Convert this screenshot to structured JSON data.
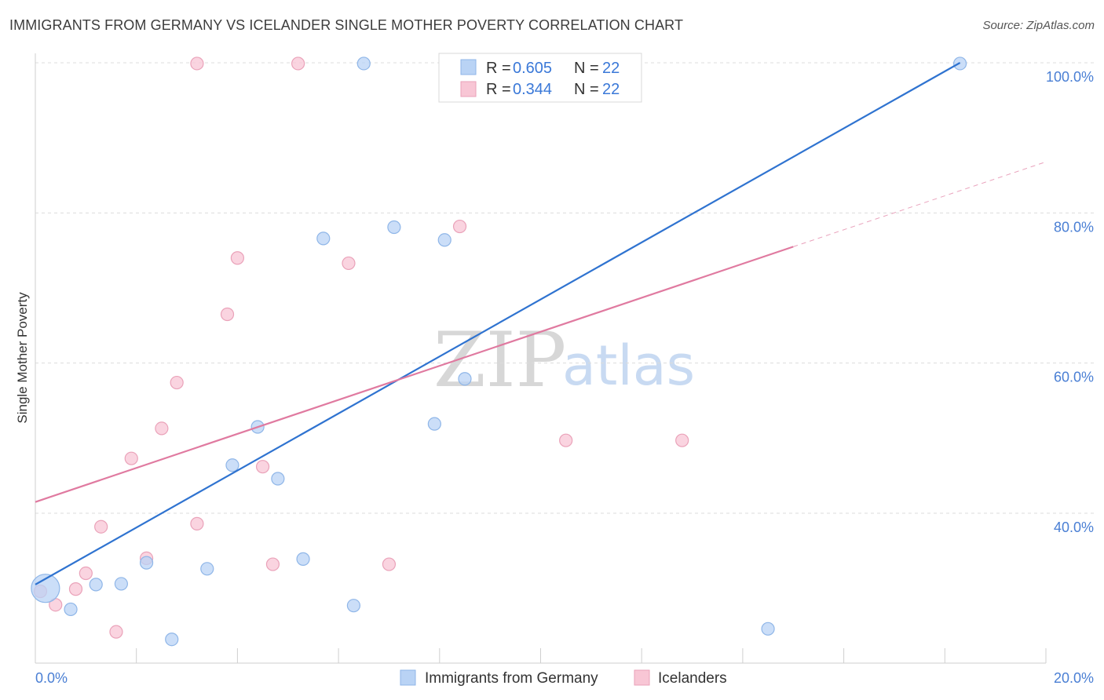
{
  "title": "IMMIGRANTS FROM GERMANY VS ICELANDER SINGLE MOTHER POVERTY CORRELATION CHART",
  "source": "Source: ZipAtlas.com",
  "watermark": {
    "zip": "ZIP",
    "atlas": "atlas"
  },
  "colors": {
    "blue_fill": "#b9d3f5",
    "blue_stroke": "#8fb6e8",
    "blue_line": "#2f73d0",
    "pink_fill": "#f8c6d5",
    "pink_stroke": "#eaa2b9",
    "pink_line": "#e07aa0",
    "tick_text": "#4a7fd4",
    "grid": "#dcdcdc"
  },
  "legend": {
    "rows": [
      {
        "r_label": "R = ",
        "r_value": "0.605",
        "n_label": "N = ",
        "n_value": "22"
      },
      {
        "r_label": "R = ",
        "r_value": "0.344",
        "n_label": "N = ",
        "n_value": "22"
      }
    ]
  },
  "chart_data": {
    "type": "scatter",
    "title": "IMMIGRANTS FROM GERMANY VS ICELANDER SINGLE MOTHER POVERTY CORRELATION CHART",
    "xlabel": "",
    "ylabel": "Single Mother Poverty",
    "xlim": [
      0,
      20
    ],
    "ylim": [
      22,
      102
    ],
    "x_tick_labels": [
      "0.0%",
      "20.0%"
    ],
    "y_ticks": [
      40,
      60,
      80,
      100
    ],
    "y_tick_labels": [
      "40.0%",
      "60.0%",
      "80.0%",
      "100.0%"
    ],
    "grid": "horizontal dashed",
    "legend_position": "top-center",
    "series": [
      {
        "name": "Immigrants from Germany",
        "color": "#b9d3f5",
        "points": [
          {
            "x": 0.2,
            "y": 30.0,
            "big": true
          },
          {
            "x": 0.7,
            "y": 27.2
          },
          {
            "x": 1.2,
            "y": 30.5
          },
          {
            "x": 1.7,
            "y": 30.6
          },
          {
            "x": 2.2,
            "y": 33.4
          },
          {
            "x": 2.7,
            "y": 23.2
          },
          {
            "x": 3.4,
            "y": 32.6
          },
          {
            "x": 3.9,
            "y": 46.4
          },
          {
            "x": 4.4,
            "y": 51.5
          },
          {
            "x": 4.8,
            "y": 44.6
          },
          {
            "x": 5.3,
            "y": 33.9
          },
          {
            "x": 5.7,
            "y": 76.6
          },
          {
            "x": 6.3,
            "y": 27.7
          },
          {
            "x": 6.5,
            "y": 99.9
          },
          {
            "x": 7.1,
            "y": 78.1
          },
          {
            "x": 7.9,
            "y": 51.9
          },
          {
            "x": 8.1,
            "y": 76.4
          },
          {
            "x": 8.5,
            "y": 57.9
          },
          {
            "x": 10.0,
            "y": 99.9
          },
          {
            "x": 10.4,
            "y": 99.9
          },
          {
            "x": 14.5,
            "y": 24.6
          },
          {
            "x": 18.3,
            "y": 99.9
          }
        ],
        "trend": {
          "x": [
            0.0,
            18.3
          ],
          "y": [
            30.5,
            100.0
          ]
        }
      },
      {
        "name": "Icelanders",
        "color": "#f8c6d5",
        "points": [
          {
            "x": 0.1,
            "y": 29.6
          },
          {
            "x": 0.4,
            "y": 27.8
          },
          {
            "x": 0.8,
            "y": 29.9
          },
          {
            "x": 1.0,
            "y": 32.0
          },
          {
            "x": 1.3,
            "y": 38.2
          },
          {
            "x": 1.6,
            "y": 24.2
          },
          {
            "x": 1.9,
            "y": 47.3
          },
          {
            "x": 2.2,
            "y": 34.0
          },
          {
            "x": 2.5,
            "y": 51.3
          },
          {
            "x": 2.8,
            "y": 57.4
          },
          {
            "x": 3.2,
            "y": 99.9
          },
          {
            "x": 3.2,
            "y": 38.6
          },
          {
            "x": 3.8,
            "y": 66.5
          },
          {
            "x": 4.0,
            "y": 74.0
          },
          {
            "x": 4.5,
            "y": 46.2
          },
          {
            "x": 4.7,
            "y": 33.2
          },
          {
            "x": 5.2,
            "y": 99.9
          },
          {
            "x": 6.2,
            "y": 73.3
          },
          {
            "x": 7.0,
            "y": 33.2
          },
          {
            "x": 8.4,
            "y": 78.2
          },
          {
            "x": 10.5,
            "y": 49.7
          },
          {
            "x": 12.8,
            "y": 49.7
          }
        ],
        "trend": {
          "x": [
            0.0,
            15.0
          ],
          "y": [
            41.5,
            75.5
          ]
        },
        "trend_dashed_extension": {
          "x": [
            15.0,
            20.0
          ],
          "y": [
            75.5,
            86.8
          ]
        }
      }
    ]
  }
}
